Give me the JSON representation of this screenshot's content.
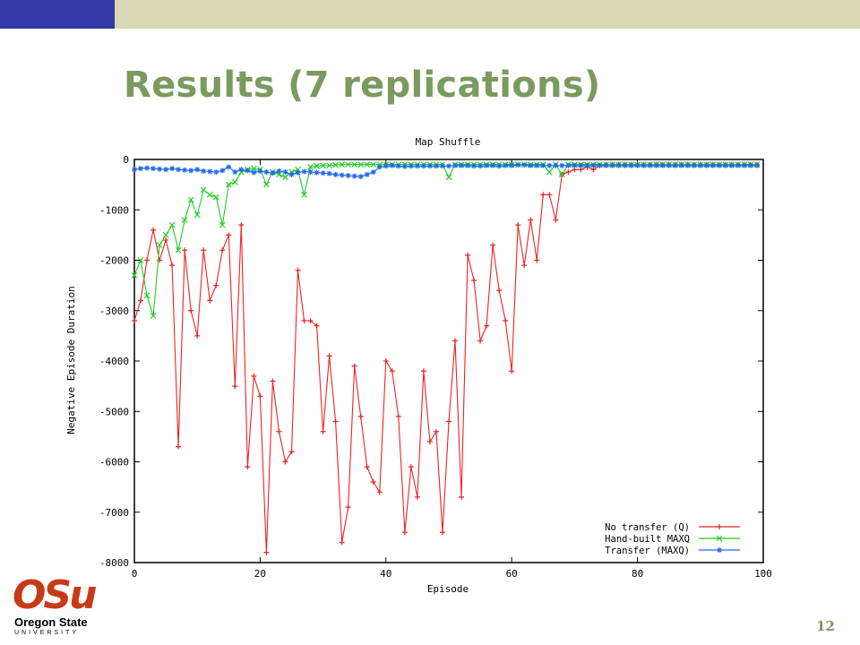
{
  "slide": {
    "title": "Results (7 replications)",
    "page_number": "12",
    "logo_text": "OSu",
    "logo_line1": "Oregon State",
    "logo_line2": "UNIVERSITY",
    "header_colors": {
      "left": "#3538a8",
      "right": "#d8d9b4"
    },
    "title_color": "#7b9a5e"
  },
  "chart_data": {
    "type": "line",
    "title": "Map Shuffle",
    "xlabel": "Episode",
    "ylabel": "Negative Episode Duration",
    "xlim": [
      0,
      100
    ],
    "ylim": [
      -8000,
      0
    ],
    "xticks": [
      0,
      20,
      40,
      60,
      80,
      100
    ],
    "yticks": [
      0,
      -1000,
      -2000,
      -3000,
      -4000,
      -5000,
      -6000,
      -7000,
      -8000
    ],
    "grid": false,
    "legend_position": "bottom-right",
    "x": [
      0,
      1,
      2,
      3,
      4,
      5,
      6,
      7,
      8,
      9,
      10,
      11,
      12,
      13,
      14,
      15,
      16,
      17,
      18,
      19,
      20,
      21,
      22,
      23,
      24,
      25,
      26,
      27,
      28,
      29,
      30,
      31,
      32,
      33,
      34,
      35,
      36,
      37,
      38,
      39,
      40,
      41,
      42,
      43,
      44,
      45,
      46,
      47,
      48,
      49,
      50,
      51,
      52,
      53,
      54,
      55,
      56,
      57,
      58,
      59,
      60,
      61,
      62,
      63,
      64,
      65,
      66,
      67,
      68,
      69,
      70,
      71,
      72,
      73,
      74,
      75,
      76,
      77,
      78,
      79,
      80,
      81,
      82,
      83,
      84,
      85,
      86,
      87,
      88,
      89,
      90,
      91,
      92,
      93,
      94,
      95,
      96,
      97,
      98,
      99
    ],
    "series": [
      {
        "name": "No transfer (Q)",
        "color": "#ee2222",
        "marker": "+",
        "values": [
          -3200,
          -2800,
          -2000,
          -1400,
          -2000,
          -1600,
          -2100,
          -5700,
          -1800,
          -3000,
          -3500,
          -1800,
          -2800,
          -2500,
          -1800,
          -1500,
          -4500,
          -1300,
          -6100,
          -4300,
          -4700,
          -7800,
          -4400,
          -5400,
          -6000,
          -5800,
          -2200,
          -3200,
          -3200,
          -3300,
          -5400,
          -3900,
          -5200,
          -7600,
          -6900,
          -4100,
          -5100,
          -6100,
          -6400,
          -6600,
          -4000,
          -4200,
          -5100,
          -7400,
          -6100,
          -6700,
          -4200,
          -5600,
          -5400,
          -7400,
          -5200,
          -3600,
          -6700,
          -1900,
          -2400,
          -3600,
          -3300,
          -1700,
          -2600,
          -3200,
          -4200,
          -1300,
          -2100,
          -1200,
          -2000,
          -700,
          -700,
          -1200,
          -300,
          -250,
          -200,
          -200,
          -150,
          -200,
          -120,
          -100,
          -100,
          -100,
          -100,
          -100,
          -100,
          -100,
          -100,
          -100,
          -100,
          -100,
          -100,
          -100,
          -100,
          -100,
          -100,
          -100,
          -100,
          -100,
          -100,
          -100,
          -100,
          -100,
          -100,
          -100
        ]
      },
      {
        "name": "Hand-built MAXQ",
        "color": "#22cc22",
        "marker": "x",
        "values": [
          -2300,
          -2000,
          -2700,
          -3100,
          -1700,
          -1500,
          -1300,
          -1800,
          -1200,
          -800,
          -1100,
          -600,
          -700,
          -750,
          -1300,
          -500,
          -450,
          -250,
          -200,
          -180,
          -200,
          -500,
          -250,
          -300,
          -350,
          -250,
          -200,
          -700,
          -150,
          -130,
          -120,
          -120,
          -110,
          -100,
          -100,
          -100,
          -100,
          -100,
          -100,
          -100,
          -100,
          -100,
          -100,
          -100,
          -100,
          -100,
          -100,
          -100,
          -100,
          -100,
          -350,
          -100,
          -100,
          -100,
          -100,
          -100,
          -100,
          -100,
          -100,
          -100,
          -100,
          -100,
          -100,
          -100,
          -100,
          -100,
          -250,
          -100,
          -300,
          -100,
          -100,
          -100,
          -100,
          -100,
          -100,
          -100,
          -100,
          -100,
          -100,
          -100,
          -100,
          -100,
          -100,
          -100,
          -100,
          -100,
          -100,
          -100,
          -100,
          -100,
          -100,
          -100,
          -100,
          -100,
          -100,
          -100,
          -100,
          -100,
          -100,
          -100
        ]
      },
      {
        "name": "Transfer (MAXQ)",
        "color": "#2266ee",
        "marker": "*",
        "values": [
          -200,
          -180,
          -170,
          -180,
          -190,
          -200,
          -180,
          -200,
          -210,
          -220,
          -200,
          -230,
          -240,
          -250,
          -220,
          -150,
          -250,
          -200,
          -220,
          -260,
          -230,
          -250,
          -270,
          -230,
          -250,
          -300,
          -260,
          -240,
          -250,
          -260,
          -270,
          -280,
          -300,
          -310,
          -320,
          -330,
          -340,
          -300,
          -250,
          -150,
          -130,
          -120,
          -130,
          -140,
          -130,
          -130,
          -130,
          -130,
          -130,
          -130,
          -130,
          -120,
          -120,
          -120,
          -130,
          -130,
          -120,
          -120,
          -130,
          -120,
          -120,
          -110,
          -110,
          -120,
          -120,
          -120,
          -120,
          -120,
          -120,
          -120,
          -120,
          -120,
          -120,
          -120,
          -120,
          -120,
          -120,
          -120,
          -120,
          -120,
          -120,
          -120,
          -120,
          -120,
          -120,
          -120,
          -120,
          -120,
          -120,
          -120,
          -120,
          -120,
          -120,
          -120,
          -120,
          -120,
          -120,
          -120,
          -120,
          -120
        ]
      }
    ]
  }
}
